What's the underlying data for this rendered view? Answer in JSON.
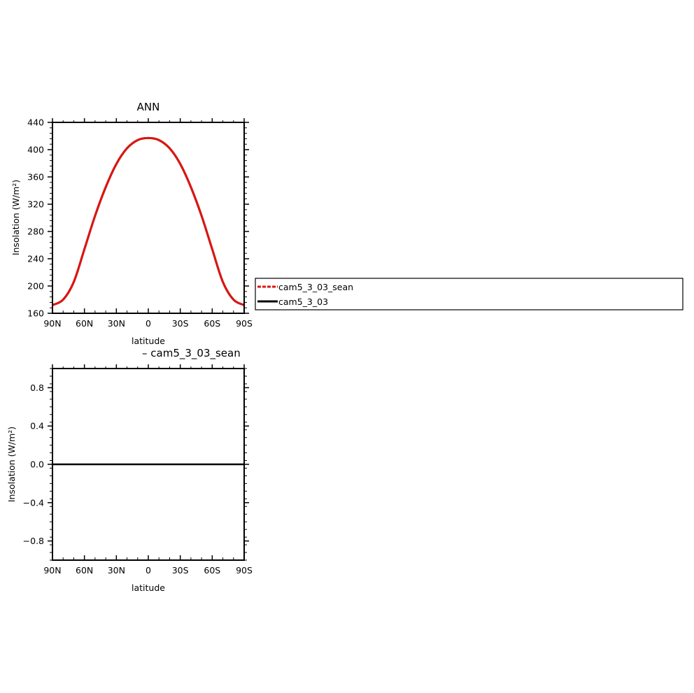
{
  "colors": {
    "series1": "#e0140f",
    "series2": "#000000",
    "axis": "#000000",
    "background": "#ffffff"
  },
  "chart_data": [
    {
      "type": "line",
      "title": "ANN",
      "xlabel": "latitude",
      "ylabel": "Insolation (W/m²)",
      "x_tick_labels": [
        "90N",
        "60N",
        "30N",
        "0",
        "30S",
        "60S",
        "90S"
      ],
      "y_tick_labels": [
        "160",
        "200",
        "240",
        "280",
        "320",
        "360",
        "400",
        "440"
      ],
      "xlim": [
        90,
        -90
      ],
      "ylim": [
        160,
        440
      ],
      "grid": false,
      "x": [
        90,
        80,
        70,
        60,
        50,
        40,
        30,
        20,
        10,
        0,
        -10,
        -20,
        -30,
        -40,
        -50,
        -60,
        -70,
        -80,
        -90
      ],
      "series": [
        {
          "name": "cam5_3_03_sean",
          "values": [
            172,
            180,
            206,
            254,
            303,
            345,
            379,
            402,
            414,
            417,
            414,
            402,
            379,
            345,
            303,
            254,
            206,
            180,
            172
          ]
        },
        {
          "name": "cam5_3_03",
          "values": [
            172,
            180,
            206,
            254,
            303,
            345,
            379,
            402,
            414,
            417,
            414,
            402,
            379,
            345,
            303,
            254,
            206,
            180,
            172
          ]
        }
      ],
      "legend": {
        "placement": "right",
        "entries": [
          "cam5_3_03_sean",
          "cam5_3_03"
        ]
      }
    },
    {
      "type": "line",
      "title": "– cam5_3_03_sean",
      "xlabel": "latitude",
      "ylabel": "Insolation (W/m²)",
      "x_tick_labels": [
        "90N",
        "60N",
        "30N",
        "0",
        "30S",
        "60S",
        "90S"
      ],
      "y_tick_labels": [
        "−0.8",
        "−0.4",
        "0.0",
        "0.4",
        "0.8"
      ],
      "xlim": [
        90,
        -90
      ],
      "ylim": [
        -1,
        1
      ],
      "grid": false,
      "x": [
        90,
        -90
      ],
      "series": [
        {
          "values": [
            0,
            0
          ]
        }
      ]
    }
  ]
}
